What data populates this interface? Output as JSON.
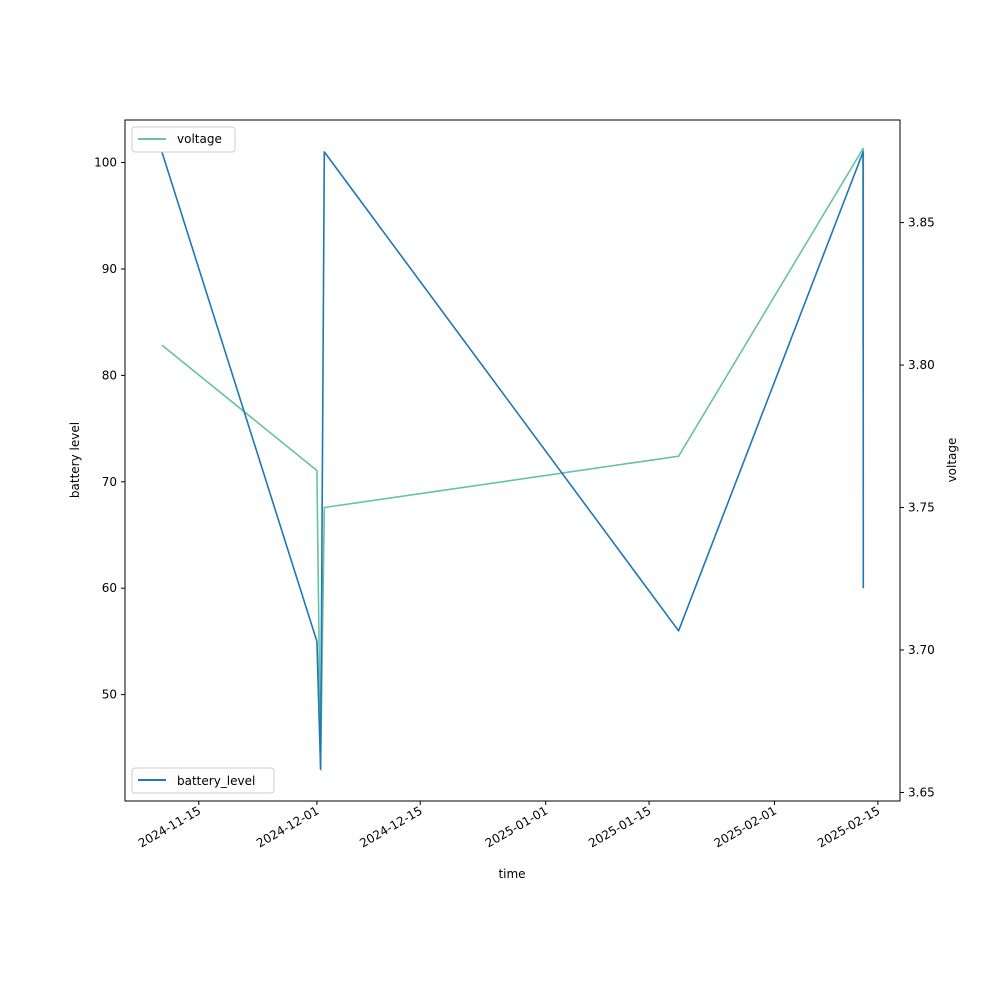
{
  "chart_data": {
    "type": "line",
    "title": "",
    "xlabel": "time",
    "ylabel": "battery level",
    "y2label": "voltage",
    "grid": false,
    "x_ticks": [
      "2024-11-15",
      "2024-12-01",
      "2024-12-15",
      "2025-01-01",
      "2025-01-15",
      "2025-02-01",
      "2025-02-15"
    ],
    "xlim": [
      "2024-11-05",
      "2025-02-18"
    ],
    "y_left_ticks": [
      50,
      60,
      70,
      80,
      90,
      100
    ],
    "y_left_lim": [
      40,
      104
    ],
    "y_right_ticks": [
      "3.65",
      "3.70",
      "3.75",
      "3.80",
      "3.85"
    ],
    "y_right_lim": [
      3.647,
      3.886
    ],
    "series": [
      {
        "name": "battery_level",
        "axis": "left",
        "color": "#1f77b4",
        "legend_position": "lower left",
        "points": [
          {
            "x": "2024-11-10",
            "y": 101
          },
          {
            "x": "2024-12-01",
            "y": 55
          },
          {
            "x": "2024-12-01 12:00",
            "y": 43
          },
          {
            "x": "2024-12-02",
            "y": 101
          },
          {
            "x": "2025-01-19",
            "y": 56
          },
          {
            "x": "2025-02-13",
            "y": 101
          },
          {
            "x": "2025-02-13 00:20",
            "y": 82
          },
          {
            "x": "2025-02-13 00:40",
            "y": 60
          }
        ]
      },
      {
        "name": "voltage",
        "axis": "right",
        "color": "#66c2a5",
        "legend_position": "upper left",
        "points": [
          {
            "x": "2024-11-10",
            "y": 3.807
          },
          {
            "x": "2024-12-01",
            "y": 3.763
          },
          {
            "x": "2024-12-01 12:00",
            "y": 3.658
          },
          {
            "x": "2024-12-02",
            "y": 3.75
          },
          {
            "x": "2025-01-19",
            "y": 3.768
          },
          {
            "x": "2025-02-13",
            "y": 3.876
          },
          {
            "x": "2025-02-13 00:20",
            "y": 3.806
          },
          {
            "x": "2025-02-13 00:40",
            "y": 3.876
          }
        ]
      }
    ]
  }
}
